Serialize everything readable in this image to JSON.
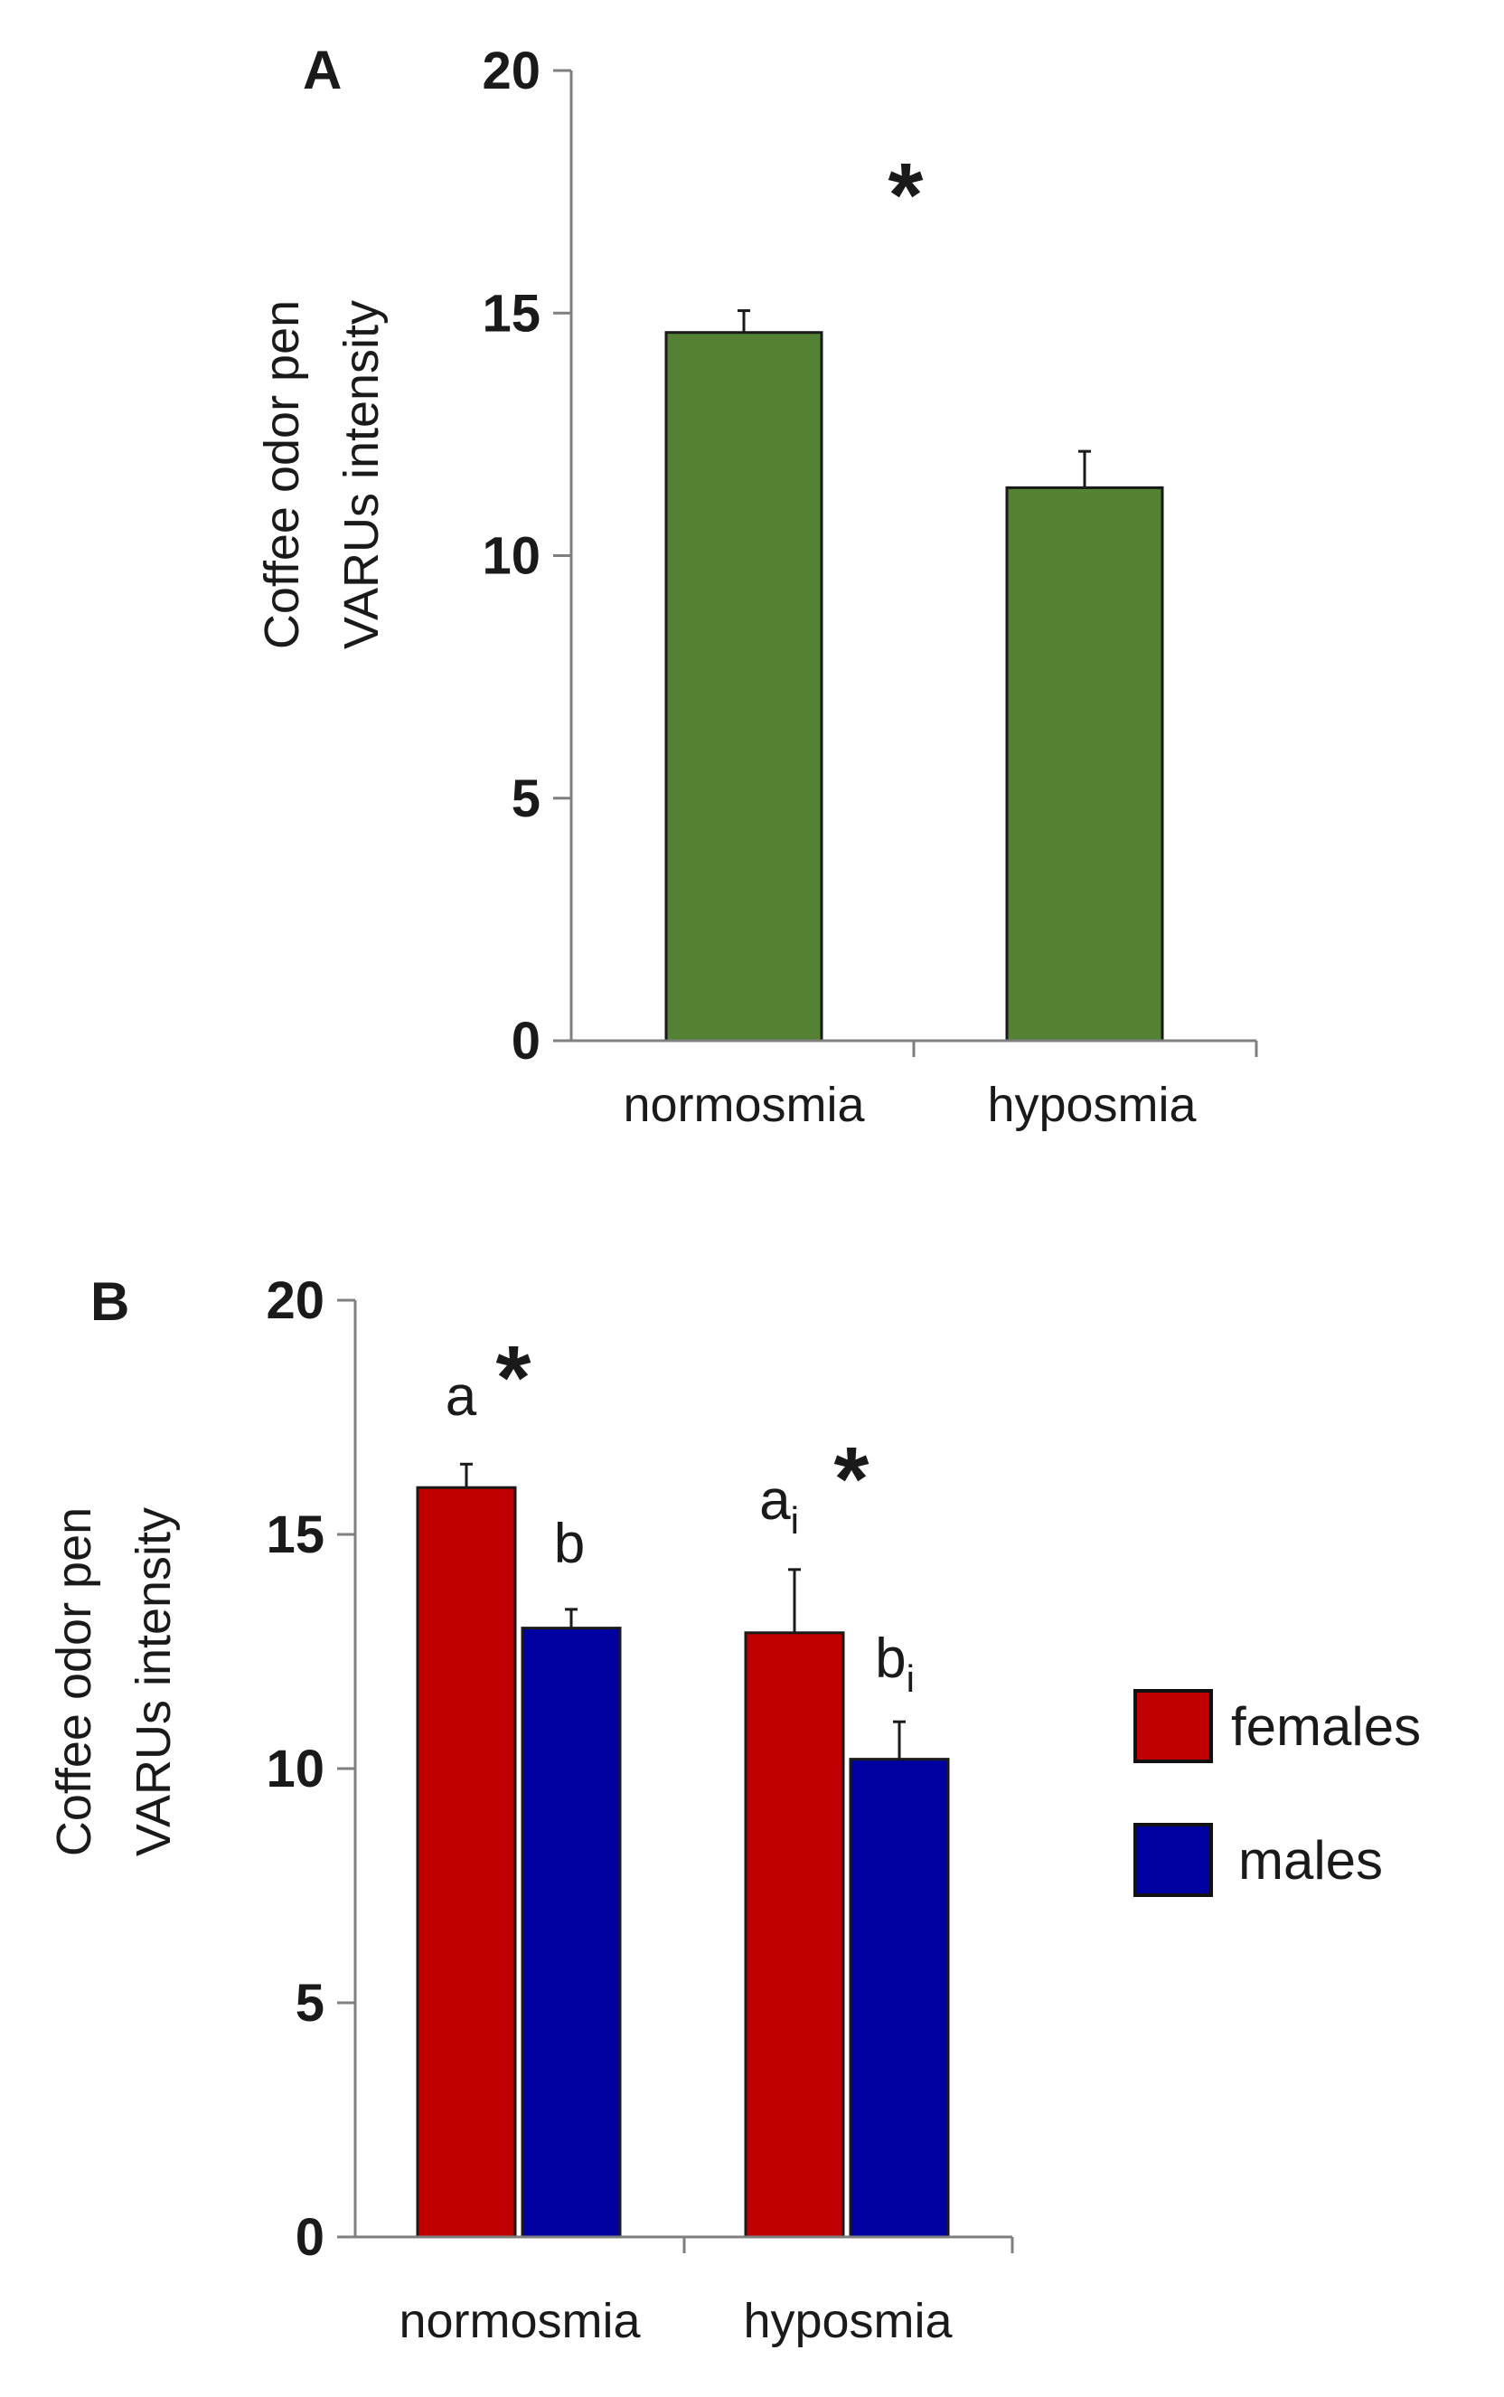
{
  "chart_data": [
    {
      "type": "bar",
      "panel_label": "A",
      "ylabel_line1": "Coffee odor pen",
      "ylabel_line2": "VARUs intensity",
      "categories": [
        "normosmia",
        "hyposmia"
      ],
      "series": [
        {
          "values": [
            14.6,
            11.4
          ],
          "errors": [
            0.45,
            0.75
          ],
          "color": "#548235"
        }
      ],
      "ylim": [
        0,
        20
      ],
      "yticks": [
        "0",
        "5",
        "10",
        "15",
        "20"
      ],
      "annotations": [
        {
          "text": "*",
          "x_between": [
            0,
            1
          ],
          "y": 17.6
        }
      ],
      "legend": "none",
      "grid": false
    },
    {
      "type": "bar",
      "panel_label": "B",
      "ylabel_line1": "Coffee odor pen",
      "ylabel_line2": "VARUs intensity",
      "categories": [
        "normosmia",
        "hyposmia"
      ],
      "series": [
        {
          "name": "females",
          "values": [
            16.0,
            12.9
          ],
          "errors": [
            0.5,
            1.35
          ],
          "labels": [
            {
              "main": "a",
              "sub": ""
            },
            {
              "main": "a",
              "sub": "i"
            }
          ],
          "color": "#c00000"
        },
        {
          "name": "males",
          "values": [
            13.0,
            10.2
          ],
          "errors": [
            0.4,
            0.8
          ],
          "labels": [
            {
              "main": "b",
              "sub": ""
            },
            {
              "main": "b",
              "sub": "i"
            }
          ],
          "color": "#0000a0"
        }
      ],
      "ylim": [
        0,
        20
      ],
      "yticks": [
        "0",
        "5",
        "10",
        "15",
        "20"
      ],
      "annotations": [
        {
          "text": "*",
          "category": 0,
          "y": 17.8
        },
        {
          "text": "*",
          "category": 1,
          "y": 15.9
        }
      ],
      "legend": "right",
      "grid": false
    }
  ]
}
